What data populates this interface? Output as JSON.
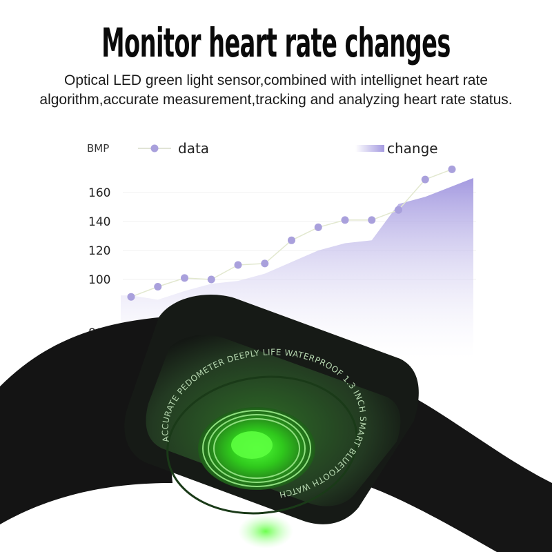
{
  "header": {
    "title": "Monitor heart rate changes",
    "description": "Optical LED green light sensor,combined with intellignet heart rate algorithm,accurate measurement,tracking and analyzing heart rate status."
  },
  "chart_data": {
    "type": "line",
    "ylabel": "BMP",
    "yticks": [
      80,
      100,
      120,
      140,
      160
    ],
    "ylim": [
      80,
      180
    ],
    "grid": true,
    "legend_placement": "top",
    "series": [
      {
        "name": "data",
        "kind": "line-with-markers",
        "values": [
          88,
          95,
          101,
          100,
          110,
          111,
          127,
          136,
          141,
          141,
          148,
          169,
          176
        ]
      },
      {
        "name": "change",
        "kind": "area",
        "values": [
          89,
          86,
          92,
          97,
          99,
          104,
          112,
          120,
          125,
          127,
          152,
          157,
          170
        ]
      }
    ],
    "colors": {
      "marker": "#a9a0dc",
      "area": "#a49ae0",
      "line": "#e2e8cf"
    }
  },
  "watch": {
    "ring_text": "ACCURATE PEDOMETER DEEPLY LIFE WATERPROOF 1.3 INCH SMART BLUETOOTH WATCH",
    "sensor_color": "#3cff2a",
    "body_color": "#1b1f1b"
  }
}
